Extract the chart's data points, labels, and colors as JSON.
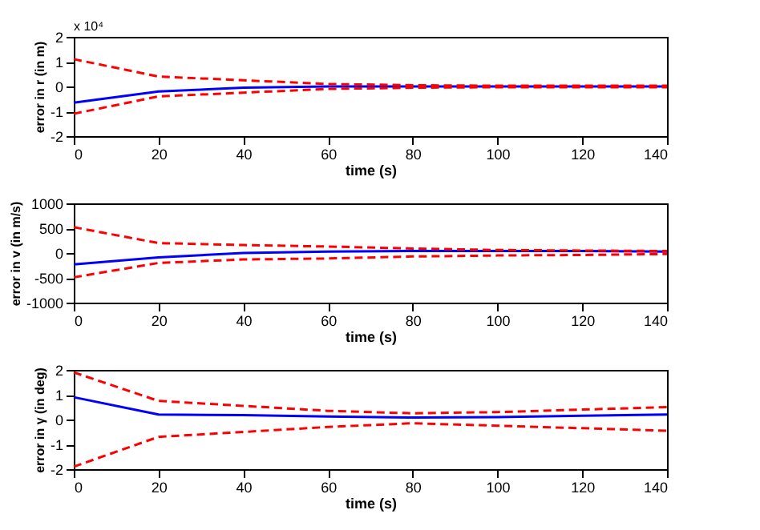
{
  "chart_data": [
    {
      "type": "line",
      "xlabel": "time (s)",
      "ylabel": "error in r (in m)",
      "annotations": [
        "x 10⁴"
      ],
      "x": [
        0,
        20,
        40,
        60,
        80,
        100,
        120,
        140
      ],
      "xlim": [
        0,
        140
      ],
      "xticks": [
        0,
        20,
        40,
        60,
        80,
        100,
        120,
        140
      ],
      "ylim": [
        -2,
        2
      ],
      "yticks": [
        -2,
        -1,
        0,
        1,
        2
      ],
      "grid": false,
      "marker": "none",
      "series": [
        {
          "color": "#0000ff",
          "line_style": "solid",
          "values": [
            -0.65,
            -0.2,
            -0.05,
            0,
            0,
            0,
            0,
            0
          ]
        },
        {
          "color": "#ff0000",
          "line_style": "dashed",
          "values": [
            1.1,
            0.4,
            0.25,
            0.1,
            0.05,
            0.03,
            0.03,
            0.03
          ]
        },
        {
          "color": "#ff0000",
          "line_style": "dashed",
          "values": [
            -1.1,
            -0.4,
            -0.25,
            -0.1,
            -0.05,
            -0.03,
            -0.03,
            -0.03
          ]
        }
      ]
    },
    {
      "type": "line",
      "xlabel": "time (s)",
      "ylabel": "error in v (in m/s)",
      "x": [
        0,
        20,
        40,
        60,
        80,
        100,
        120,
        140
      ],
      "xlim": [
        0,
        140
      ],
      "xticks": [
        0,
        20,
        40,
        60,
        80,
        100,
        120,
        140
      ],
      "ylim": [
        -1000,
        1000
      ],
      "yticks": [
        -1000,
        -500,
        0,
        500,
        1000
      ],
      "grid": false,
      "marker": "none",
      "series": [
        {
          "color": "#0000ff",
          "line_style": "solid",
          "values": [
            -230,
            -90,
            0,
            30,
            40,
            40,
            40,
            30
          ]
        },
        {
          "color": "#ff0000",
          "line_style": "dashed",
          "values": [
            520,
            200,
            160,
            130,
            90,
            60,
            50,
            40
          ]
        },
        {
          "color": "#ff0000",
          "line_style": "dashed",
          "values": [
            -490,
            -200,
            -130,
            -110,
            -70,
            -50,
            -40,
            -20
          ]
        }
      ]
    },
    {
      "type": "line",
      "xlabel": "time (s)",
      "ylabel": "error in γ (in deg)",
      "x": [
        0,
        20,
        40,
        60,
        80,
        100,
        120,
        140
      ],
      "xlim": [
        0,
        140
      ],
      "xticks": [
        0,
        20,
        40,
        60,
        80,
        100,
        120,
        140
      ],
      "ylim": [
        -2,
        2
      ],
      "yticks": [
        -2,
        -1,
        0,
        1,
        2
      ],
      "grid": false,
      "marker": "none",
      "series": [
        {
          "color": "#0000ff",
          "line_style": "solid",
          "values": [
            0.9,
            0.2,
            0.18,
            0.12,
            0.08,
            0.1,
            0.15,
            0.2
          ]
        },
        {
          "color": "#ff0000",
          "line_style": "dashed",
          "values": [
            1.9,
            0.75,
            0.55,
            0.35,
            0.25,
            0.3,
            0.4,
            0.5
          ]
        },
        {
          "color": "#ff0000",
          "line_style": "dashed",
          "values": [
            -1.9,
            -0.7,
            -0.5,
            -0.3,
            -0.15,
            -0.25,
            -0.35,
            -0.45
          ]
        }
      ]
    }
  ]
}
